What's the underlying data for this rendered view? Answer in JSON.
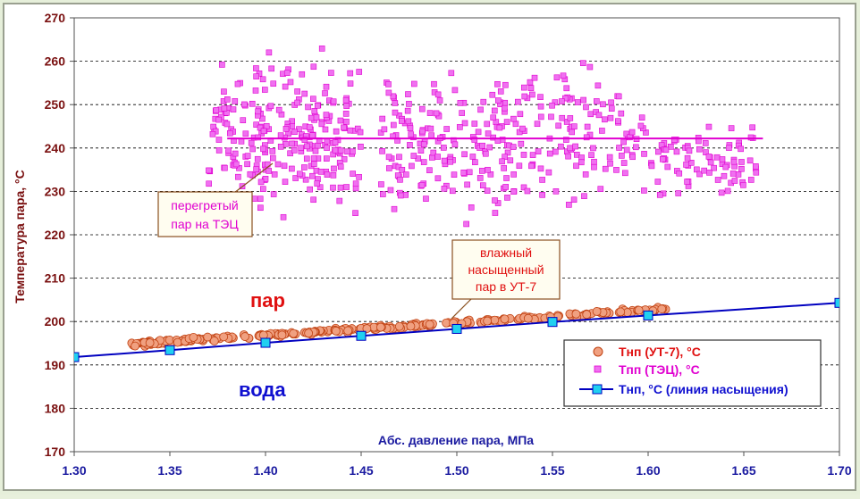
{
  "chart_data": {
    "type": "scatter",
    "title": "",
    "xlabel": "Абс. давление пара, МПа",
    "ylabel": "Температура пара, °С",
    "xlim": [
      1.3,
      1.7
    ],
    "ylim": [
      170,
      270
    ],
    "x_ticks": [
      "1.30",
      "1.35",
      "1.40",
      "1.45",
      "1.50",
      "1.55",
      "1.60",
      "1.65",
      "1.70"
    ],
    "y_ticks": [
      "170",
      "180",
      "190",
      "200",
      "210",
      "220",
      "230",
      "240",
      "250",
      "260",
      "270"
    ],
    "grid": "horizontal dashed",
    "legend_position": "bottom-right",
    "series": [
      {
        "name": "Тнп (УТ-7), °С",
        "kind": "scatter-circle",
        "color": "#f0a080",
        "x_range": [
          1.33,
          1.61
        ],
        "approx_fit": {
          "slope": 29.5,
          "intercept": 155.5
        }
      },
      {
        "name": "Тпп (ТЭЦ), °С",
        "kind": "scatter-square",
        "color": "#f070f0",
        "x_range": [
          1.37,
          1.66
        ],
        "y_range": [
          219,
          263
        ],
        "mean": 242
      },
      {
        "name": "Тнп, °С (линия насыщения)",
        "kind": "line-square",
        "color": "#0000c0",
        "marker_color": "#20d0f0",
        "x": [
          1.3,
          1.35,
          1.4,
          1.45,
          1.5,
          1.55,
          1.6,
          1.7
        ],
        "y": [
          191.8,
          193.4,
          195.1,
          196.7,
          198.3,
          199.9,
          201.4,
          204.3
        ]
      }
    ],
    "mean_line": {
      "y": 242.2,
      "x_range": [
        1.38,
        1.66
      ],
      "color": "#e000d0"
    },
    "annotations": {
      "steam": "пар",
      "water": "вода",
      "superheated": [
        "перегретый",
        "пар на ТЭЦ"
      ],
      "wet_saturated": [
        "влажный",
        "насыщенный",
        "пар в УТ-7"
      ]
    }
  }
}
